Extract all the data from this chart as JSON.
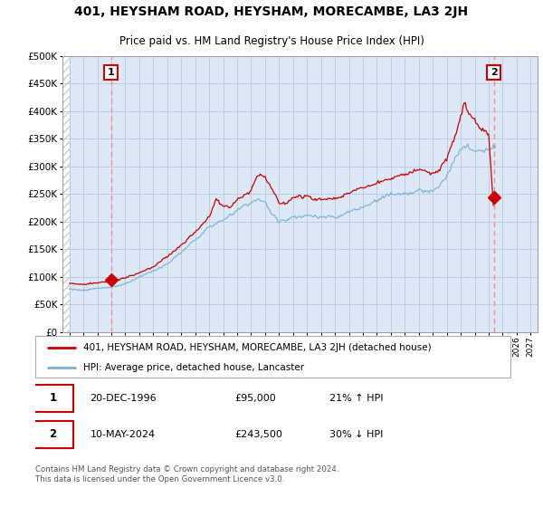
{
  "title": "401, HEYSHAM ROAD, HEYSHAM, MORECAMBE, LA3 2JH",
  "subtitle": "Price paid vs. HM Land Registry's House Price Index (HPI)",
  "legend_label1": "401, HEYSHAM ROAD, HEYSHAM, MORECAMBE, LA3 2JH (detached house)",
  "legend_label2": "HPI: Average price, detached house, Lancaster",
  "point1_date": "20-DEC-1996",
  "point1_price": "£95,000",
  "point1_hpi": "21% ↑ HPI",
  "point2_date": "10-MAY-2024",
  "point2_price": "£243,500",
  "point2_hpi": "30% ↓ HPI",
  "footer": "Contains HM Land Registry data © Crown copyright and database right 2024.\nThis data is licensed under the Open Government Licence v3.0.",
  "red_color": "#cc0000",
  "blue_color": "#7bafd4",
  "bg_color": "#dce8f5",
  "grid_color": "#b0c4de",
  "point1_x": 1996.97,
  "point1_y": 95000,
  "point2_x": 2024.37,
  "point2_y": 243500,
  "xlim_min": 1993.5,
  "xlim_max": 2027.5,
  "ylim_min": 0,
  "ylim_max": 500000,
  "yticks": [
    0,
    50000,
    100000,
    150000,
    200000,
    250000,
    300000,
    350000,
    400000,
    450000,
    500000
  ]
}
